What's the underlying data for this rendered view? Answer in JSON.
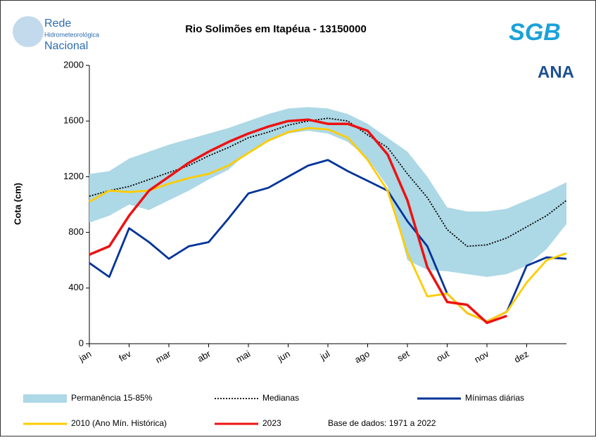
{
  "chart_data": {
    "type": "line",
    "title": "Rio Solimões em Itapéua - 13150000",
    "y_label": "Cota (cm)",
    "annotation": "Base de dados: 1971 a 2022",
    "logos": [
      "Rede",
      "Hidrometeorológica",
      "Nacional",
      "SGB",
      "ANA"
    ],
    "x": [
      0,
      0.5,
      1,
      1.5,
      2,
      2.5,
      3,
      3.5,
      4,
      4.5,
      5,
      5.5,
      6,
      6.5,
      7,
      7.5,
      8,
      8.5,
      9,
      9.5,
      10,
      10.5,
      11,
      11.5,
      12
    ],
    "xlim": [
      0,
      12
    ],
    "xticks": [
      {
        "value": 0,
        "label": "jan"
      },
      {
        "value": 1,
        "label": "fev"
      },
      {
        "value": 2,
        "label": "mar"
      },
      {
        "value": 3,
        "label": "abr"
      },
      {
        "value": 4,
        "label": "mai"
      },
      {
        "value": 5,
        "label": "jun"
      },
      {
        "value": 6,
        "label": "jul"
      },
      {
        "value": 7,
        "label": "ago"
      },
      {
        "value": 8,
        "label": "set"
      },
      {
        "value": 9,
        "label": "out"
      },
      {
        "value": 10,
        "label": "nov"
      },
      {
        "value": 11,
        "label": "dez"
      }
    ],
    "ylim": [
      0,
      2000
    ],
    "yticks": [
      0,
      400,
      800,
      1200,
      1600,
      2000
    ],
    "grid": false,
    "series": [
      {
        "name": "Permanência 15-85%",
        "color": "#add8e6",
        "style": "band",
        "upper": [
          1220,
          1240,
          1330,
          1380,
          1430,
          1470,
          1510,
          1550,
          1600,
          1650,
          1690,
          1700,
          1690,
          1650,
          1580,
          1480,
          1380,
          1200,
          980,
          950,
          950,
          970,
          1030,
          1090,
          1160
        ],
        "lower": [
          870,
          920,
          1000,
          960,
          1030,
          1100,
          1180,
          1250,
          1380,
          1450,
          1510,
          1530,
          1510,
          1450,
          1330,
          1130,
          600,
          530,
          520,
          500,
          480,
          500,
          560,
          680,
          860
        ]
      },
      {
        "name": "Medianas",
        "color": "#000000",
        "style": "dotted",
        "values": [
          1060,
          1100,
          1130,
          1180,
          1230,
          1280,
          1350,
          1410,
          1480,
          1520,
          1570,
          1600,
          1620,
          1600,
          1500,
          1410,
          1220,
          1050,
          820,
          700,
          710,
          760,
          840,
          920,
          1030
        ]
      },
      {
        "name": "Mínimas diárias",
        "color": "#003399",
        "style": "solid",
        "values": [
          580,
          480,
          830,
          730,
          610,
          700,
          730,
          900,
          1080,
          1120,
          1200,
          1280,
          1320,
          1240,
          1170,
          1100,
          880,
          700,
          360,
          220,
          160,
          230,
          560,
          620,
          610
        ]
      },
      {
        "name": "2010 (Ano Mín. Histórica)",
        "color": "#ffcc00",
        "style": "solid",
        "values": [
          1020,
          1100,
          1090,
          1100,
          1150,
          1190,
          1220,
          1280,
          1370,
          1460,
          1520,
          1550,
          1540,
          1480,
          1320,
          1100,
          650,
          340,
          360,
          220,
          160,
          230,
          440,
          600,
          650
        ]
      },
      {
        "name": "2023",
        "color": "#ee1111",
        "style": "solid",
        "values": [
          640,
          700,
          920,
          1100,
          1200,
          1300,
          1380,
          1450,
          1510,
          1560,
          1600,
          1610,
          1580,
          1580,
          1530,
          1360,
          1030,
          550,
          300,
          280,
          150,
          200,
          null,
          null,
          null
        ]
      }
    ]
  }
}
